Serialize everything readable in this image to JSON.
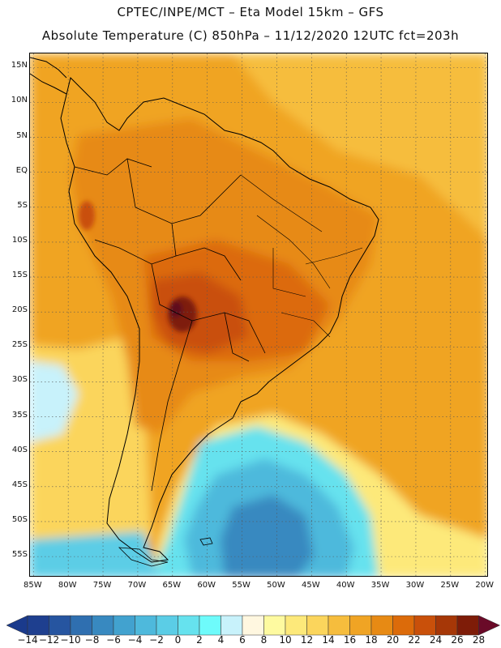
{
  "header": {
    "line1": "CPTEC/INPE/MCT –  Eta Model 15km – GFS",
    "line2": "Absolute Temperature (C) 850hPa – 11/12/2020 12UTC fct=203h"
  },
  "map": {
    "lat_labels": [
      "15N",
      "10N",
      "5N",
      "EQ",
      "5S",
      "10S",
      "15S",
      "20S",
      "25S",
      "30S",
      "35S",
      "40S",
      "45S",
      "50S",
      "55S"
    ],
    "lon_labels": [
      "85W",
      "80W",
      "75W",
      "70W",
      "65W",
      "60W",
      "55W",
      "50W",
      "45W",
      "40W",
      "35W",
      "30W",
      "25W",
      "20W"
    ],
    "lat_range_deg": [
      -58,
      17
    ],
    "lon_range_deg": [
      -85.5,
      -19.5
    ],
    "gridlines": true
  },
  "legend": {
    "labels": [
      "-14",
      "-12",
      "-10",
      "-8",
      "-6",
      "-4",
      "-2",
      "0",
      "2",
      "4",
      "6",
      "8",
      "10",
      "12",
      "14",
      "16",
      "18",
      "20",
      "22",
      "24",
      "26",
      "28"
    ],
    "colors": [
      "#1e3f8f",
      "#2655a0",
      "#2f6fb0",
      "#3889c0",
      "#42a2cf",
      "#4eb9dc",
      "#5bcde6",
      "#66e2ee",
      "#6efbfb",
      "#c8f2fb",
      "#fff7e0",
      "#fefaa0",
      "#fde97a",
      "#fbd55c",
      "#f6bd3d",
      "#f0a424",
      "#e78a14",
      "#dc6b0a",
      "#c9500a",
      "#a63707",
      "#7e1c08"
    ],
    "low_color": "#1a3a8c",
    "high_color": "#6a0a28"
  }
}
